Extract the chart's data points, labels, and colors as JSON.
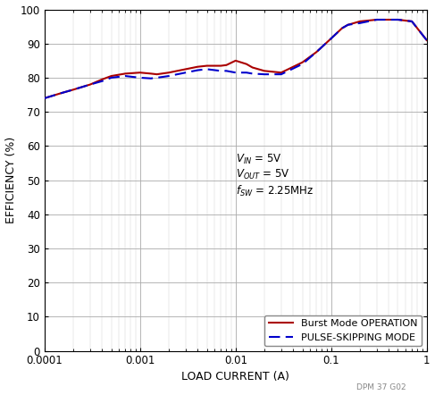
{
  "xlabel": "LOAD CURRENT (A)",
  "ylabel": "EFFICIENCY (%)",
  "xlim": [
    0.0001,
    1
  ],
  "ylim": [
    0,
    100
  ],
  "yticks": [
    0,
    10,
    20,
    30,
    40,
    50,
    60,
    70,
    80,
    90,
    100
  ],
  "legend_burst": "Burst Mode OPERATION",
  "legend_pulse": "PULSE-SKIPPING MODE",
  "burst_color": "#aa0000",
  "pulse_color": "#0000cc",
  "watermark": "DPM 37 G02",
  "burst_x": [
    0.0001,
    0.00015,
    0.0002,
    0.0003,
    0.0004,
    0.0005,
    0.0007,
    0.001,
    0.0013,
    0.0015,
    0.002,
    0.003,
    0.004,
    0.005,
    0.007,
    0.008,
    0.01,
    0.013,
    0.015,
    0.02,
    0.03,
    0.05,
    0.07,
    0.1,
    0.13,
    0.15,
    0.2,
    0.3,
    0.5,
    0.7,
    1.0
  ],
  "burst_y": [
    74,
    75.5,
    76.5,
    78,
    79.5,
    80.5,
    81.2,
    81.5,
    81.2,
    81.0,
    81.5,
    82.5,
    83.2,
    83.5,
    83.5,
    83.7,
    85.0,
    84.0,
    83.0,
    82.0,
    81.5,
    84.5,
    87.5,
    91.5,
    94.5,
    95.5,
    96.5,
    97.0,
    97.0,
    96.5,
    91.0
  ],
  "pulse_x": [
    0.0001,
    0.00015,
    0.0002,
    0.0003,
    0.0004,
    0.0005,
    0.0007,
    0.001,
    0.0013,
    0.0015,
    0.002,
    0.003,
    0.004,
    0.005,
    0.007,
    0.008,
    0.01,
    0.013,
    0.015,
    0.02,
    0.03,
    0.05,
    0.07,
    0.1,
    0.13,
    0.15,
    0.2,
    0.3,
    0.5,
    0.7,
    1.0
  ],
  "pulse_y": [
    74,
    75.5,
    76.5,
    78,
    79.0,
    80.0,
    80.5,
    80.0,
    79.8,
    80.0,
    80.5,
    81.5,
    82.2,
    82.5,
    82.0,
    82.0,
    81.5,
    81.5,
    81.2,
    81.0,
    81.0,
    84.0,
    87.5,
    91.5,
    94.5,
    95.5,
    96.0,
    97.0,
    97.0,
    96.5,
    91.0
  ],
  "annot_vin": "V",
  "annot_vout": "V",
  "annot_fsw": "2.25MHz"
}
